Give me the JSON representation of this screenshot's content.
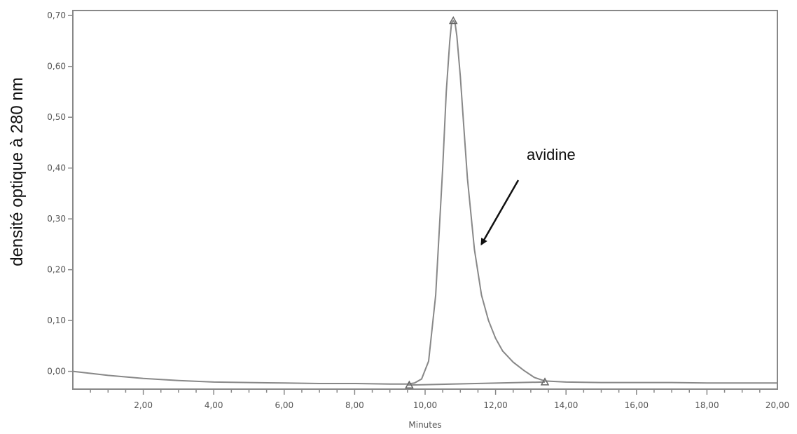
{
  "chart_data": {
    "type": "line",
    "title": "",
    "xlabel": "Minutes",
    "ylabel": "densité optique à 280 nm",
    "xlim": [
      0,
      20
    ],
    "ylim": [
      -0.035,
      0.71
    ],
    "grid": false,
    "x_ticks": [
      2,
      4,
      6,
      8,
      10,
      12,
      14,
      16,
      18,
      20
    ],
    "x_tick_labels": [
      "2,00",
      "4,00",
      "6,00",
      "8,00",
      "10,00",
      "12,00",
      "14,00",
      "16,00",
      "18,00",
      "20,00"
    ],
    "y_ticks": [
      0,
      0.1,
      0.2,
      0.3,
      0.4,
      0.5,
      0.6,
      0.7
    ],
    "y_tick_labels": [
      "0,00",
      "0,10",
      "0,20",
      "0,30",
      "0,40",
      "0,50",
      "0,60",
      "0,70"
    ],
    "series": [
      {
        "color": "#888888",
        "x": [
          0,
          0.5,
          1,
          2,
          3,
          4,
          5,
          6,
          7,
          8,
          9,
          9.5,
          9.7,
          9.9,
          10.1,
          10.3,
          10.5,
          10.6,
          10.7,
          10.75,
          10.8,
          10.85,
          10.9,
          11.0,
          11.1,
          11.2,
          11.4,
          11.6,
          11.8,
          12.0,
          12.2,
          12.5,
          12.8,
          13.1,
          13.4,
          13.7,
          14,
          15,
          16,
          17,
          18,
          19,
          20
        ],
        "y": [
          0.0,
          -0.004,
          -0.008,
          -0.014,
          -0.018,
          -0.021,
          -0.022,
          -0.023,
          -0.024,
          -0.024,
          -0.025,
          -0.025,
          -0.023,
          -0.015,
          0.02,
          0.15,
          0.4,
          0.55,
          0.65,
          0.685,
          0.69,
          0.685,
          0.66,
          0.58,
          0.48,
          0.38,
          0.24,
          0.15,
          0.1,
          0.065,
          0.04,
          0.018,
          0.002,
          -0.012,
          -0.019,
          -0.02,
          -0.021,
          -0.022,
          -0.022,
          -0.022,
          -0.023,
          -0.023,
          -0.023
        ]
      }
    ],
    "baseline": {
      "color": "#888888",
      "x": [
        9.5,
        13.4
      ],
      "y": [
        -0.027,
        -0.021
      ]
    },
    "markers": [
      {
        "shape": "triangle",
        "x": 9.55,
        "y": -0.027
      },
      {
        "shape": "triangle",
        "x": 13.4,
        "y": -0.021
      },
      {
        "shape": "triangle",
        "x": 10.8,
        "y": 0.69
      }
    ],
    "annotations": [
      {
        "text": "avidine",
        "arrow_to": {
          "x": 11.6,
          "y": 0.25
        }
      }
    ]
  }
}
